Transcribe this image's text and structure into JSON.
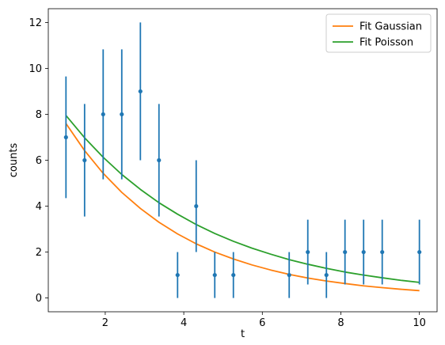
{
  "chart_data": {
    "type": "scatter",
    "xlabel": "t",
    "ylabel": "counts",
    "xlim": [
      0.55,
      10.45
    ],
    "ylim": [
      -0.6,
      12.6
    ],
    "xticks": [
      2,
      4,
      6,
      8,
      10
    ],
    "yticks": [
      0,
      2,
      4,
      6,
      8,
      10,
      12
    ],
    "grid": false,
    "legend_position": "top-right",
    "data_series": {
      "color": "#1f77b4",
      "points": [
        {
          "x": 1.0,
          "y": 7,
          "yerr_low": 2.65,
          "yerr_high": 2.65
        },
        {
          "x": 1.474,
          "y": 6,
          "yerr_low": 2.45,
          "yerr_high": 2.45
        },
        {
          "x": 1.947,
          "y": 8,
          "yerr_low": 2.83,
          "yerr_high": 2.83
        },
        {
          "x": 2.421,
          "y": 8,
          "yerr_low": 2.83,
          "yerr_high": 2.83
        },
        {
          "x": 2.895,
          "y": 9,
          "yerr_low": 3.0,
          "yerr_high": 3.0
        },
        {
          "x": 3.368,
          "y": 6,
          "yerr_low": 2.45,
          "yerr_high": 2.45
        },
        {
          "x": 3.842,
          "y": 1,
          "yerr_low": 1.0,
          "yerr_high": 1.0
        },
        {
          "x": 4.316,
          "y": 4,
          "yerr_low": 2.0,
          "yerr_high": 2.0
        },
        {
          "x": 4.789,
          "y": 1,
          "yerr_low": 1.0,
          "yerr_high": 1.0
        },
        {
          "x": 5.263,
          "y": 1,
          "yerr_low": 1.0,
          "yerr_high": 1.0
        },
        {
          "x": 6.684,
          "y": 1,
          "yerr_low": 1.0,
          "yerr_high": 1.0
        },
        {
          "x": 7.158,
          "y": 2,
          "yerr_low": 1.41,
          "yerr_high": 1.41
        },
        {
          "x": 7.632,
          "y": 1,
          "yerr_low": 1.0,
          "yerr_high": 1.0
        },
        {
          "x": 8.105,
          "y": 2,
          "yerr_low": 1.41,
          "yerr_high": 1.41
        },
        {
          "x": 8.579,
          "y": 2,
          "yerr_low": 1.41,
          "yerr_high": 1.41
        },
        {
          "x": 9.053,
          "y": 2,
          "yerr_low": 1.41,
          "yerr_high": 1.41
        },
        {
          "x": 10.0,
          "y": 2,
          "yerr_low": 1.41,
          "yerr_high": 1.41
        }
      ]
    },
    "series": [
      {
        "name": "Fit Gaussian",
        "type": "line",
        "color": "#ff7f0e",
        "x": [
          1.0,
          1.474,
          1.947,
          2.421,
          2.895,
          3.368,
          3.842,
          4.316,
          4.789,
          5.263,
          5.737,
          6.211,
          6.684,
          7.158,
          7.632,
          8.105,
          8.579,
          9.053,
          9.526,
          10.0
        ],
        "y": [
          7.6,
          6.42,
          5.43,
          4.6,
          3.9,
          3.3,
          2.79,
          2.36,
          2.0,
          1.7,
          1.44,
          1.22,
          1.03,
          0.87,
          0.74,
          0.63,
          0.53,
          0.45,
          0.38,
          0.32
        ]
      },
      {
        "name": "Fit Poisson",
        "type": "line",
        "color": "#2ca02c",
        "x": [
          1.0,
          1.474,
          1.947,
          2.421,
          2.895,
          3.368,
          3.842,
          4.316,
          4.789,
          5.263,
          5.737,
          6.211,
          6.684,
          7.158,
          7.632,
          8.105,
          8.579,
          9.053,
          9.526,
          10.0
        ],
        "y": [
          7.95,
          6.98,
          6.13,
          5.38,
          4.73,
          4.15,
          3.65,
          3.2,
          2.81,
          2.47,
          2.17,
          1.91,
          1.67,
          1.47,
          1.29,
          1.13,
          1.0,
          0.88,
          0.77,
          0.68
        ]
      }
    ]
  }
}
